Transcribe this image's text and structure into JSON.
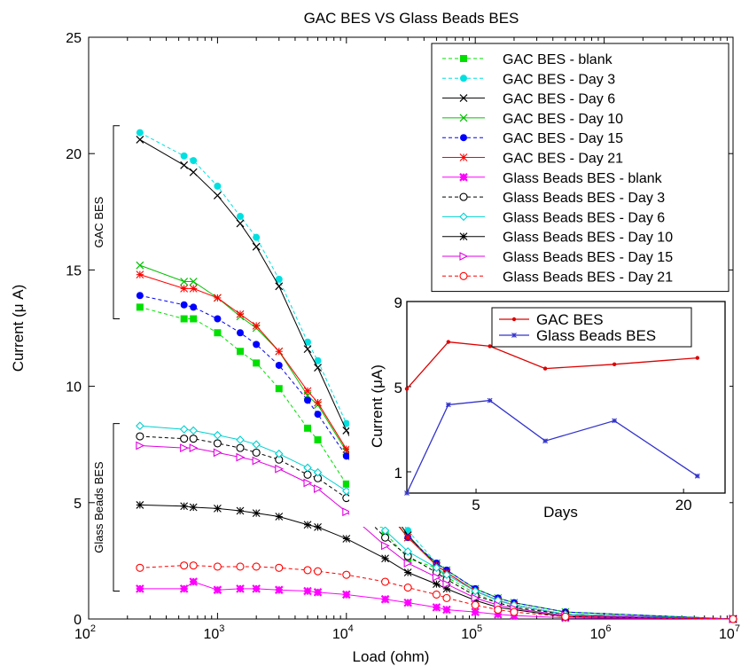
{
  "chart_data": [
    {
      "type": "line",
      "title": "GAC BES VS Glass Beads BES",
      "xlabel": "Load (ohm)",
      "ylabel": "Current (μ A)",
      "xscale": "log",
      "xlim": [
        100,
        10000000
      ],
      "ylim": [
        0,
        25
      ],
      "xticks": [
        100,
        1000,
        10000,
        100000,
        1000000,
        10000000
      ],
      "xtick_labels": [
        {
          "base": "10",
          "exp": "2"
        },
        {
          "base": "10",
          "exp": "3"
        },
        {
          "base": "10",
          "exp": "4"
        },
        {
          "base": "10",
          "exp": "5"
        },
        {
          "base": "10",
          "exp": "6"
        },
        {
          "base": "10",
          "exp": "7"
        }
      ],
      "yticks": [
        0,
        5,
        10,
        15,
        20,
        25
      ],
      "ytick_labels": [
        "0",
        "5",
        "10",
        "15",
        "20",
        "25"
      ],
      "grid": false,
      "legend_position": "top-right",
      "group_labels": [
        {
          "text": "GAC BES",
          "range": [
            12.9,
            21.2
          ]
        },
        {
          "text": "Glass Beads BES",
          "range": [
            1.2,
            8.4
          ]
        }
      ],
      "x": [
        250,
        550,
        650,
        1000,
        1500,
        2000,
        3000,
        5000,
        6000,
        10000,
        20000,
        30000,
        50000,
        60000,
        100000,
        150000,
        200000,
        500000,
        10000000
      ],
      "series": [
        {
          "name": "GAC BES - blank",
          "color": "#00e000",
          "dash": "dashed",
          "marker": "square",
          "values": [
            13.4,
            12.9,
            12.9,
            12.3,
            11.5,
            11.0,
            9.9,
            8.2,
            7.7,
            5.8,
            3.7,
            2.6,
            2.2,
            1.8,
            1.1,
            0.7,
            0.5,
            0.2,
            0.0
          ]
        },
        {
          "name": "GAC BES - Day 3",
          "color": "#00e0e0",
          "dash": "dashed",
          "marker": "circle-filled",
          "values": [
            20.9,
            19.9,
            19.7,
            18.6,
            17.3,
            16.4,
            14.6,
            11.9,
            11.1,
            8.4,
            5.2,
            3.8,
            2.4,
            2.1,
            1.3,
            0.9,
            0.7,
            0.3,
            0.0
          ]
        },
        {
          "name": "GAC BES - Day 6",
          "color": "#000000",
          "dash": "solid",
          "marker": "x",
          "values": [
            20.6,
            19.5,
            19.2,
            18.2,
            17.0,
            16.0,
            14.3,
            11.6,
            10.8,
            8.1,
            5.0,
            3.6,
            2.3,
            2.0,
            1.2,
            0.8,
            0.6,
            0.2,
            0.0
          ]
        },
        {
          "name": "GAC BES - Day 10",
          "color": "#00c000",
          "dash": "solid",
          "marker": "x",
          "values": [
            15.2,
            14.5,
            14.5,
            13.8,
            13.0,
            12.5,
            11.5,
            9.6,
            9.2,
            7.2,
            4.8,
            3.5,
            2.4,
            2.1,
            1.3,
            0.9,
            0.7,
            0.3,
            0.0
          ]
        },
        {
          "name": "GAC BES - Day 15",
          "color": "#0000ff",
          "dash": "dashed",
          "marker": "circle-filled",
          "values": [
            13.9,
            13.5,
            13.4,
            12.9,
            12.3,
            11.8,
            10.9,
            9.4,
            8.8,
            7.0,
            4.7,
            3.5,
            2.4,
            2.1,
            1.3,
            0.9,
            0.7,
            0.3,
            0.0
          ]
        },
        {
          "name": "GAC BES - Day 21",
          "color": "#ff0000",
          "dash": "solid",
          "marker": "star",
          "values": [
            14.8,
            14.2,
            14.2,
            13.8,
            13.1,
            12.6,
            11.5,
            9.8,
            9.3,
            7.3,
            4.7,
            3.5,
            2.3,
            2.0,
            1.2,
            0.8,
            0.6,
            0.2,
            0.0
          ]
        },
        {
          "name": "Glass Beads BES - blank",
          "color": "#ff00ff",
          "dash": "solid",
          "marker": "star-filled",
          "values": [
            1.3,
            1.3,
            1.6,
            1.25,
            1.3,
            1.3,
            1.25,
            1.2,
            1.15,
            1.05,
            0.85,
            0.7,
            0.5,
            0.4,
            0.3,
            0.2,
            0.15,
            0.05,
            0.0
          ]
        },
        {
          "name": "Glass Beads BES - Day 3",
          "color": "#000000",
          "dash": "dashed",
          "marker": "circle-open",
          "values": [
            7.85,
            7.75,
            7.75,
            7.55,
            7.35,
            7.15,
            6.85,
            6.2,
            6.05,
            5.2,
            3.5,
            2.7,
            2.0,
            1.7,
            1.0,
            0.7,
            0.5,
            0.2,
            0.0
          ]
        },
        {
          "name": "Glass Beads BES - Day 6",
          "color": "#00d0d0",
          "dash": "solid",
          "marker": "diamond-open",
          "values": [
            8.3,
            8.15,
            8.1,
            7.9,
            7.7,
            7.5,
            7.1,
            6.5,
            6.3,
            5.5,
            3.8,
            2.9,
            2.2,
            1.9,
            1.2,
            0.8,
            0.6,
            0.2,
            0.0
          ]
        },
        {
          "name": "Glass Beads BES - Day 10",
          "color": "#000000",
          "dash": "solid",
          "marker": "star",
          "values": [
            4.9,
            4.85,
            4.8,
            4.75,
            4.65,
            4.55,
            4.4,
            4.05,
            3.95,
            3.45,
            2.6,
            2.0,
            1.5,
            1.3,
            0.8,
            0.5,
            0.4,
            0.1,
            0.0
          ]
        },
        {
          "name": "Glass Beads BES - Day 15",
          "color": "#e000e0",
          "dash": "solid",
          "marker": "triangle-right-open",
          "values": [
            7.45,
            7.35,
            7.35,
            7.15,
            6.95,
            6.8,
            6.45,
            5.85,
            5.6,
            4.6,
            3.15,
            2.4,
            1.8,
            1.5,
            0.9,
            0.6,
            0.45,
            0.15,
            0.0
          ]
        },
        {
          "name": "Glass Beads BES - Day 21",
          "color": "#ff0000",
          "dash": "dashed",
          "marker": "circle-open",
          "values": [
            2.2,
            2.3,
            2.3,
            2.25,
            2.25,
            2.25,
            2.2,
            2.1,
            2.05,
            1.9,
            1.6,
            1.35,
            1.05,
            0.9,
            0.6,
            0.4,
            0.3,
            0.1,
            0.0
          ]
        }
      ]
    },
    {
      "type": "line",
      "title": "",
      "xlabel": "Days",
      "ylabel": "Current (μA)",
      "xlim": [
        0,
        23
      ],
      "ylim": [
        0,
        9
      ],
      "xticks": [
        5,
        20
      ],
      "xtick_labels": [
        "5",
        "20"
      ],
      "yticks": [
        1,
        5,
        9
      ],
      "ytick_labels": [
        "1",
        "5",
        "9"
      ],
      "legend_position": "top-right",
      "series": [
        {
          "name": "GAC BES",
          "color": "#dd0000",
          "marker": "dot",
          "x": [
            0,
            3,
            6,
            10,
            15,
            21
          ],
          "values": [
            4.9,
            7.1,
            6.9,
            5.85,
            6.05,
            6.35
          ]
        },
        {
          "name": "Glass Beads BES",
          "color": "#3333cc",
          "marker": "star",
          "x": [
            0,
            3,
            6,
            10,
            15,
            21
          ],
          "values": [
            0.0,
            4.15,
            4.35,
            2.45,
            3.4,
            0.8
          ]
        }
      ]
    }
  ]
}
